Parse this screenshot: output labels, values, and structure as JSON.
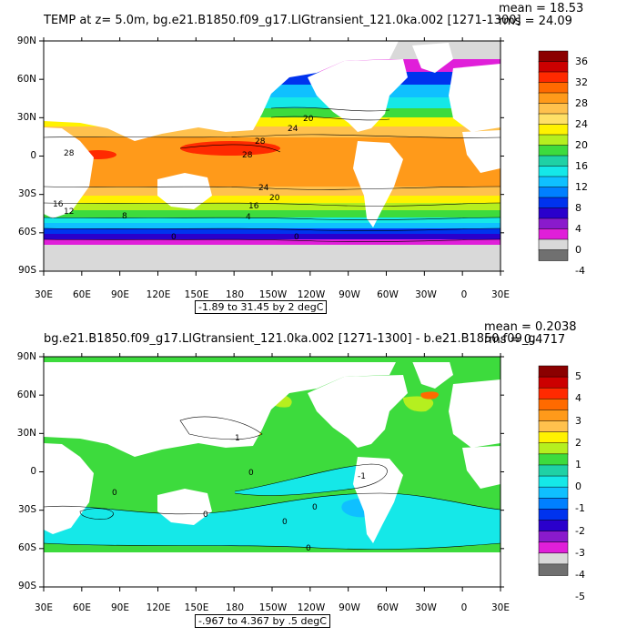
{
  "top": {
    "title": "TEMP at z=    5.0m, bg.e21.B1850.f09_g17.LIGtransient_121.0ka.002 [1271-1300]",
    "mean": "mean = 18.53",
    "rms": "rms = 24.09",
    "range_note": "-1.89 to 31.45 by 2 degC",
    "lat_labels": [
      "90N",
      "60N",
      "30N",
      "0",
      "30S",
      "60S",
      "90S"
    ],
    "lon_labels": [
      "30E",
      "60E",
      "90E",
      "120E",
      "150E",
      "180",
      "150W",
      "120W",
      "90W",
      "60W",
      "30W",
      "0",
      "30E"
    ],
    "colorbar_labels": [
      "36",
      "32",
      "28",
      "24",
      "20",
      "16",
      "12",
      "8",
      "4",
      "0",
      "-4"
    ],
    "colorbar_colors": [
      "#8b0000",
      "#cc0000",
      "#ff2a00",
      "#ff6a00",
      "#ff9a1a",
      "#ffc14d",
      "#ffe066",
      "#fff200",
      "#b5ef1f",
      "#3ddb3d",
      "#1fd1a5",
      "#15e8e8",
      "#0fc0ff",
      "#0080ff",
      "#0033ee",
      "#2a00cc",
      "#8a1acc",
      "#e01fd9",
      "#d9d9d9",
      "#707070"
    ],
    "contour_labels": [
      "28",
      "28",
      "28",
      "24",
      "24",
      "20",
      "20",
      "16",
      "16",
      "12",
      "8",
      "4",
      "0",
      "0"
    ]
  },
  "bottom": {
    "title": "bg.e21.B1850.f09_g17.LIGtransient_121.0ka.002 [1271-1300] - b.e21.B1850.f09_g",
    "mean": "mean = 0.2038",
    "rms": "rms = 0.4717",
    "range_note": "-.967 to 4.367 by .5 degC",
    "lat_labels": [
      "90N",
      "60N",
      "30N",
      "0",
      "30S",
      "60S",
      "90S"
    ],
    "lon_labels": [
      "30E",
      "60E",
      "90E",
      "120E",
      "150E",
      "180",
      "150W",
      "120W",
      "90W",
      "60W",
      "30W",
      "0",
      "30E"
    ],
    "colorbar_labels": [
      "5",
      "4",
      "3",
      "2",
      "1",
      "0",
      "-1",
      "-2",
      "-3",
      "-4",
      "-5"
    ],
    "colorbar_colors": [
      "#8b0000",
      "#cc0000",
      "#ff2a00",
      "#ff6a00",
      "#ff9a1a",
      "#ffc14d",
      "#fff200",
      "#b5ef1f",
      "#3ddb3d",
      "#1fd1a5",
      "#15e8e8",
      "#0fc0ff",
      "#0080ff",
      "#0033ee",
      "#2a00cc",
      "#8a1acc",
      "#e01fd9",
      "#d9d9d9",
      "#707070"
    ],
    "contour_labels": [
      "0",
      "0",
      "0",
      "0",
      "0",
      "0",
      "1",
      "-1"
    ]
  }
}
